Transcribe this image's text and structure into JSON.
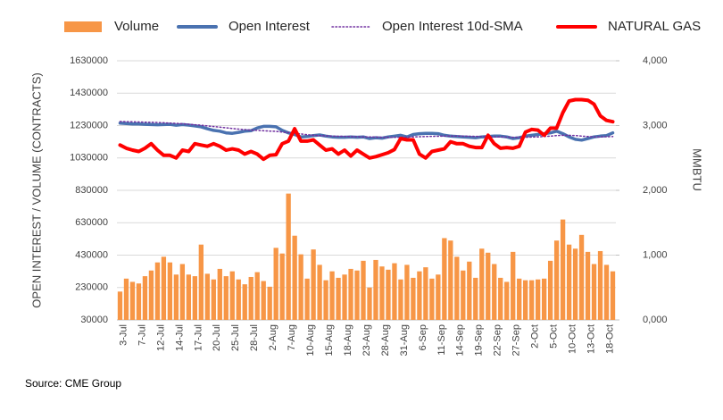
{
  "chart_data": {
    "type": "bar",
    "categories": [
      "3-Jul",
      null,
      null,
      "7-Jul",
      null,
      null,
      "12-Jul",
      null,
      null,
      "14-Jul",
      null,
      null,
      "17-Jul",
      null,
      null,
      "20-Jul",
      null,
      null,
      "25-Jul",
      null,
      null,
      "28-Jul",
      null,
      null,
      "2-Aug",
      null,
      null,
      "7-Aug",
      null,
      null,
      "10-Aug",
      null,
      null,
      "15-Aug",
      null,
      null,
      "18-Aug",
      null,
      null,
      "23-Aug",
      null,
      null,
      "28-Aug",
      null,
      null,
      "31-Aug",
      null,
      null,
      "6-Sep",
      null,
      null,
      "11-Sep",
      null,
      null,
      "14-Sep",
      null,
      null,
      "19-Sep",
      null,
      null,
      "22-Sep",
      null,
      null,
      "27-Sep",
      null,
      null,
      "2-Oct",
      null,
      null,
      "5-Oct",
      null,
      null,
      "10-Oct",
      null,
      null,
      "13-Oct",
      null,
      null,
      "18-Oct",
      null
    ],
    "series": [
      {
        "name": "Volume",
        "type": "bar",
        "color": "#f79646",
        "values": [
          205000,
          285000,
          265000,
          255000,
          300000,
          335000,
          385000,
          420000,
          385000,
          310000,
          375000,
          310000,
          300000,
          495000,
          315000,
          280000,
          345000,
          300000,
          330000,
          280000,
          250000,
          295000,
          325000,
          270000,
          235000,
          475000,
          440000,
          810000,
          550000,
          435000,
          285000,
          465000,
          370000,
          275000,
          330000,
          290000,
          310000,
          345000,
          335000,
          395000,
          230000,
          400000,
          360000,
          340000,
          380000,
          280000,
          370000,
          290000,
          330000,
          355000,
          285000,
          310000,
          535000,
          520000,
          420000,
          335000,
          390000,
          290000,
          470000,
          445000,
          375000,
          290000,
          265000,
          450000,
          285000,
          275000,
          275000,
          280000,
          285000,
          395000,
          520000,
          650000,
          495000,
          470000,
          555000,
          450000,
          375000,
          455000,
          370000,
          330000
        ]
      },
      {
        "name": "Open Interest",
        "type": "line",
        "color": "#4a72b0",
        "values": [
          1245000,
          1242000,
          1240000,
          1240000,
          1238000,
          1236000,
          1235000,
          1236000,
          1238000,
          1232000,
          1236000,
          1233000,
          1228000,
          1222000,
          1210000,
          1200000,
          1195000,
          1185000,
          1182000,
          1188000,
          1195000,
          1198000,
          1215000,
          1225000,
          1225000,
          1222000,
          1200000,
          1185000,
          1175000,
          1160000,
          1162000,
          1168000,
          1172000,
          1165000,
          1160000,
          1158000,
          1158000,
          1160000,
          1158000,
          1160000,
          1150000,
          1155000,
          1152000,
          1160000,
          1165000,
          1170000,
          1160000,
          1175000,
          1180000,
          1182000,
          1182000,
          1180000,
          1170000,
          1165000,
          1162000,
          1160000,
          1158000,
          1155000,
          1160000,
          1162000,
          1165000,
          1165000,
          1160000,
          1150000,
          1155000,
          1165000,
          1170000,
          1175000,
          1180000,
          1185000,
          1195000,
          1180000,
          1160000,
          1145000,
          1140000,
          1150000,
          1160000,
          1165000,
          1168000,
          1185000
        ]
      },
      {
        "name": "Open Interest 10d-SMA",
        "type": "line",
        "dash": "dotted",
        "color": "#7030a0",
        "values": [
          1255000,
          1254000,
          1253000,
          1252000,
          1251000,
          1250000,
          1249000,
          1247000,
          1245000,
          1243000,
          1241000,
          1238000,
          1235000,
          1232000,
          1228000,
          1224000,
          1220000,
          1216000,
          1212000,
          1208000,
          1205000,
          1202000,
          1200000,
          1198000,
          1196000,
          1194000,
          1190000,
          1186000,
          1182000,
          1178000,
          1174000,
          1170000,
          1168000,
          1166000,
          1165000,
          1164000,
          1163000,
          1162000,
          1161000,
          1160000,
          1160000,
          1159000,
          1158000,
          1158000,
          1158000,
          1158000,
          1159000,
          1160000,
          1161000,
          1162000,
          1163000,
          1164000,
          1165000,
          1165000,
          1165000,
          1165000,
          1164000,
          1163000,
          1162000,
          1161000,
          1160000,
          1160000,
          1159000,
          1158000,
          1158000,
          1158000,
          1159000,
          1160000,
          1162000,
          1165000,
          1168000,
          1170000,
          1170000,
          1168000,
          1165000,
          1162000,
          1160000,
          1160000,
          1161000,
          1162000
        ]
      },
      {
        "name": "NATURAL GAS",
        "type": "line",
        "axis": "y2",
        "color": "#ff0000",
        "values": [
          2700,
          2650,
          2620,
          2600,
          2650,
          2720,
          2620,
          2540,
          2540,
          2500,
          2620,
          2600,
          2720,
          2700,
          2680,
          2720,
          2680,
          2620,
          2640,
          2620,
          2560,
          2600,
          2560,
          2480,
          2540,
          2550,
          2720,
          2760,
          2950,
          2760,
          2760,
          2780,
          2700,
          2620,
          2640,
          2560,
          2620,
          2530,
          2620,
          2560,
          2500,
          2520,
          2550,
          2580,
          2630,
          2800,
          2780,
          2780,
          2560,
          2500,
          2600,
          2620,
          2640,
          2750,
          2720,
          2720,
          2680,
          2660,
          2660,
          2850,
          2720,
          2650,
          2660,
          2650,
          2680,
          2900,
          2940,
          2930,
          2850,
          2960,
          2960,
          3200,
          3380,
          3400,
          3400,
          3390,
          3330,
          3150,
          3080,
          3060
        ]
      }
    ],
    "y_label": "OPEN INTEREST / VOLUME (CONTRACTS)",
    "y2_label": "MMBTU",
    "ylim": [
      30000,
      1630000
    ],
    "yticks": [
      30000,
      230000,
      430000,
      630000,
      830000,
      1030000,
      1230000,
      1430000,
      1630000
    ],
    "y2lim": [
      0,
      4000
    ],
    "y2ticks": [
      {
        "value": 0,
        "label": "0,000"
      },
      {
        "value": 1000,
        "label": "1,000"
      },
      {
        "value": 2000,
        "label": "2,000"
      },
      {
        "value": 3000,
        "label": "3,000"
      },
      {
        "value": 4000,
        "label": "4,000"
      }
    ],
    "grid": true,
    "legend": "top",
    "source": "Source: CME Group"
  }
}
